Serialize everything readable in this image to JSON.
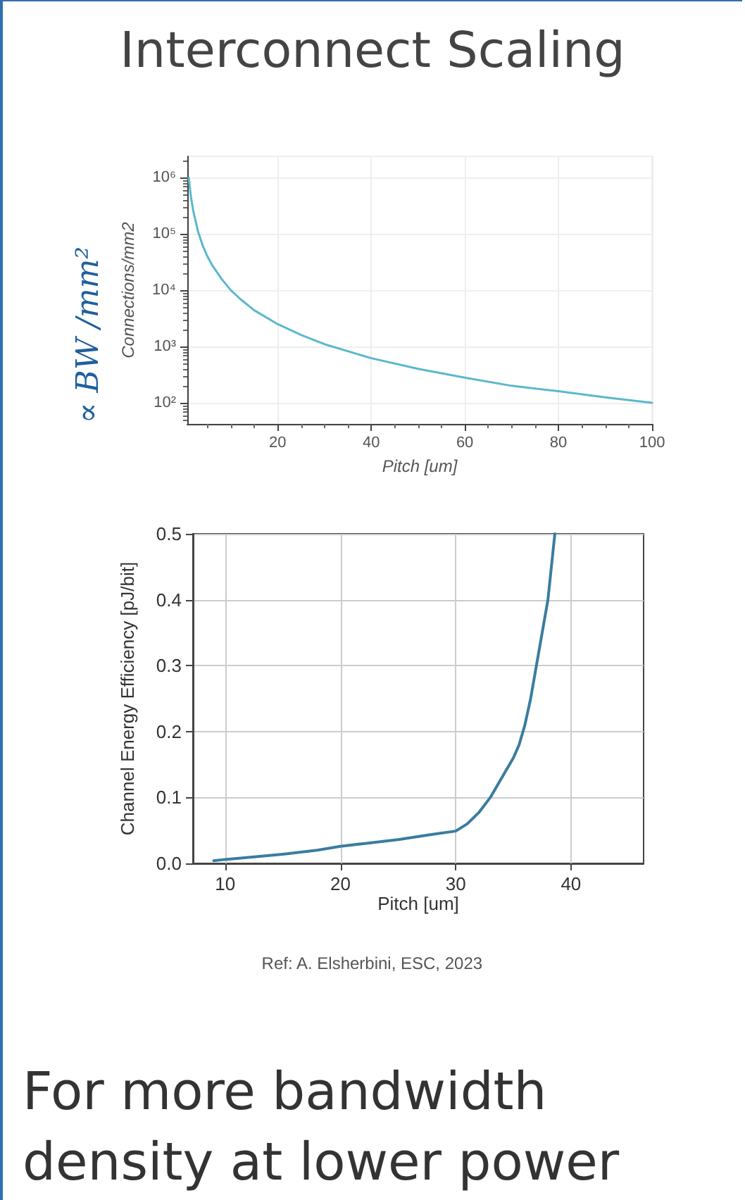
{
  "chart_data": [
    {
      "type": "line",
      "title": "Interconnect Scaling",
      "xlabel": "Pitch [um]",
      "ylabel": "Connections/mm2",
      "annotations": [
        "∝ BW /mm²"
      ],
      "x": [
        1,
        1.5,
        2,
        3,
        4,
        5,
        6,
        8,
        10,
        12,
        15,
        20,
        25,
        30,
        40,
        50,
        60,
        70,
        80,
        90,
        100
      ],
      "series": [
        {
          "color": "#5bb8cc",
          "values": [
            1000000,
            440000,
            250000,
            110000,
            62000,
            40000,
            28000,
            16000,
            10000,
            7000,
            4400,
            2500,
            1600,
            1100,
            620,
            400,
            280,
            200,
            160,
            125,
            100
          ]
        }
      ],
      "log": "y",
      "xlim": [
        0.7,
        100
      ],
      "ylim": [
        42,
        2400000
      ],
      "xticks": [
        20,
        40,
        60,
        80,
        100
      ],
      "yticks": [
        {
          "value": 100,
          "label": "10²"
        },
        {
          "value": 1000,
          "label": "10³"
        },
        {
          "value": 10000,
          "label": "10⁴"
        },
        {
          "value": 100000,
          "label": "10⁵"
        },
        {
          "value": 1000000,
          "label": "10⁶"
        }
      ],
      "grid": true,
      "line_style": "solid",
      "marker": "none"
    },
    {
      "type": "line",
      "xlabel": "Pitch [um]",
      "ylabel": "Channel Energy Efficiency [pJ/bit]",
      "annotations": [
        "Ref: A. Elsherbini, ESC, 2023",
        "For more bandwidth density at lower power"
      ],
      "x": [
        9,
        10,
        12,
        15,
        18,
        20,
        22,
        25,
        28,
        30,
        31,
        32,
        33,
        34,
        35,
        35.5,
        36,
        36.5,
        37,
        37.5,
        38,
        38.3,
        38.6
      ],
      "series": [
        {
          "color": "#3a7ca0",
          "values": [
            0.004,
            0.006,
            0.009,
            0.014,
            0.02,
            0.026,
            0.03,
            0.036,
            0.044,
            0.049,
            0.06,
            0.077,
            0.1,
            0.13,
            0.16,
            0.18,
            0.21,
            0.25,
            0.3,
            0.35,
            0.4,
            0.45,
            0.5
          ]
        }
      ],
      "xlim": [
        7.2,
        46.3
      ],
      "ylim": [
        0,
        0.5
      ],
      "xticks": [
        10,
        20,
        30,
        40
      ],
      "yticks": [
        {
          "value": 0,
          "label": "0.0"
        },
        {
          "value": 0.1,
          "label": "0.1"
        },
        {
          "value": 0.2,
          "label": "0.2"
        },
        {
          "value": 0.3,
          "label": "0.3"
        },
        {
          "value": 0.4,
          "label": "0.4"
        },
        {
          "value": 0.5,
          "label": "0.5"
        }
      ],
      "grid": true,
      "line_style": "solid",
      "marker": "none"
    }
  ]
}
